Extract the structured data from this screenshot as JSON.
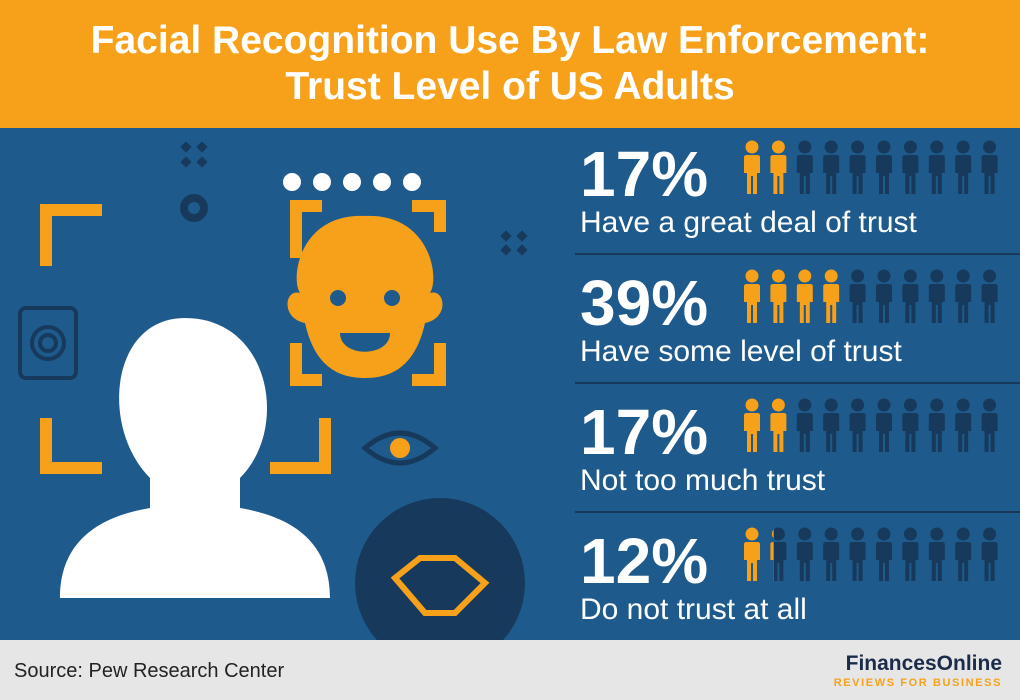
{
  "chart_data": {
    "type": "pictogram",
    "title": "Facial Recognition Use By Law Enforcement: Trust Level of US Adults",
    "categories": [
      "Have a great deal of trust",
      "Have some level of trust",
      "Not too much trust",
      "Do not trust at all"
    ],
    "values": [
      17,
      39,
      17,
      12
    ],
    "value_labels": [
      "17%",
      "39%",
      "17%",
      "12%"
    ],
    "color": "#f7a11a",
    "empty_color": "#173a5c",
    "source": "Source: Pew Research Center",
    "brand": "FinancesOnline",
    "brand_tagline": "REVIEWS FOR BUSINESS"
  }
}
